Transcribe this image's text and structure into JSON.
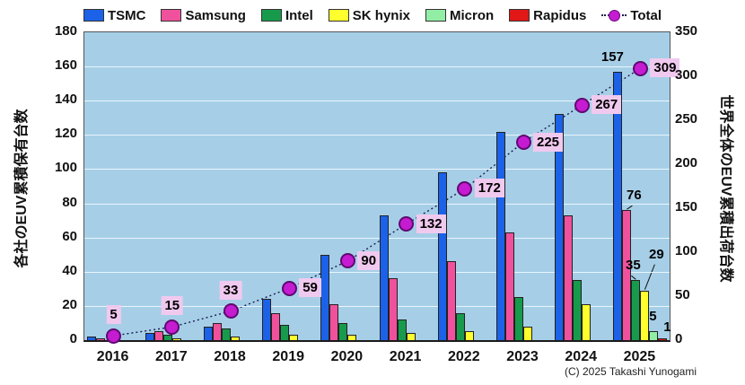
{
  "chart_data": {
    "type": "bar",
    "categories": [
      "2016",
      "2017",
      "2018",
      "2019",
      "2020",
      "2021",
      "2022",
      "2023",
      "2024",
      "2025"
    ],
    "series": [
      {
        "name": "TSMC",
        "color": "#1b62e8",
        "values": [
          2,
          4,
          8,
          24,
          50,
          73,
          98,
          122,
          132,
          157
        ]
      },
      {
        "name": "Samsung",
        "color": "#f0519c",
        "values": [
          1,
          5,
          10,
          16,
          21,
          36,
          46,
          63,
          73,
          76
        ]
      },
      {
        "name": "Intel",
        "color": "#189a4d",
        "values": [
          0,
          3,
          7,
          9,
          10,
          12,
          16,
          25,
          35,
          35
        ]
      },
      {
        "name": "SK hynix",
        "color": "#ffff2e",
        "values": [
          0,
          1,
          2,
          3,
          3,
          4,
          5,
          8,
          21,
          29
        ]
      },
      {
        "name": "Micron",
        "color": "#92eea5",
        "values": [
          0,
          0,
          0,
          0,
          0,
          0,
          0,
          0,
          0,
          5
        ]
      },
      {
        "name": "Rapidus",
        "color": "#e21717",
        "values": [
          0,
          0,
          0,
          0,
          0,
          0,
          0,
          0,
          0,
          1
        ]
      }
    ],
    "total": {
      "name": "Total",
      "axis": "right",
      "values": [
        5,
        15,
        33,
        59,
        90,
        132,
        172,
        225,
        267,
        309
      ],
      "marker_color": "#c51bd1",
      "line_color": "#1c1c55",
      "label_bg": "#f0c9ef"
    },
    "bar_value_labels": [
      {
        "year": "2025",
        "series": "TSMC",
        "text": "157"
      },
      {
        "year": "2025",
        "series": "Samsung",
        "text": "76"
      },
      {
        "year": "2025",
        "series": "Intel",
        "text": "35"
      },
      {
        "year": "2025",
        "series": "SK hynix",
        "text": "29"
      },
      {
        "year": "2025",
        "series": "Micron",
        "text": "5"
      },
      {
        "year": "2025",
        "series": "Rapidus",
        "text": "1"
      }
    ],
    "left_axis": {
      "title": "各社のEUV累積保有台数",
      "min": 0,
      "max": 180,
      "step": 20
    },
    "right_axis": {
      "title": "世界全体のEUV累積出荷台数",
      "min": 0,
      "max": 350,
      "step": 50
    },
    "plot_bg": "#a6cfe7",
    "grid": true,
    "legend_position": "top"
  },
  "footer": {
    "copyright": "(C) 2025 Takashi Yunogami"
  }
}
